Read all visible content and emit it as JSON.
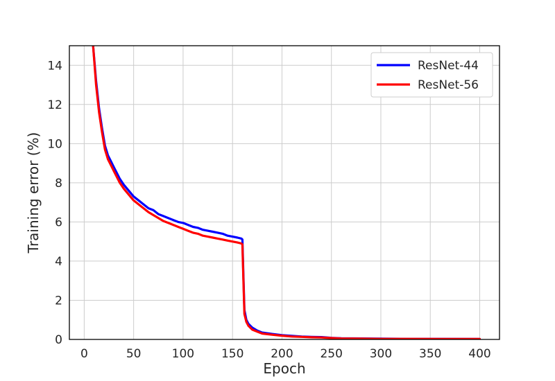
{
  "chart_data": {
    "type": "line",
    "title": "",
    "xlabel": "Epoch",
    "ylabel": "Training error (%)",
    "xlim": [
      -15,
      420
    ],
    "ylim": [
      0,
      15
    ],
    "xticks": [
      0,
      50,
      100,
      150,
      200,
      250,
      300,
      350,
      400
    ],
    "yticks": [
      0,
      2,
      4,
      6,
      8,
      10,
      12,
      14
    ],
    "grid": true,
    "legend_position": "top-right",
    "series": [
      {
        "name": "ResNet-44",
        "color": "#0000ff",
        "x": [
          9,
          12,
          15,
          18,
          21,
          24,
          27,
          30,
          33,
          36,
          40,
          45,
          50,
          55,
          60,
          65,
          70,
          75,
          80,
          85,
          90,
          95,
          100,
          105,
          110,
          115,
          120,
          125,
          130,
          135,
          140,
          145,
          150,
          155,
          159,
          160,
          161,
          162,
          164,
          166,
          170,
          175,
          180,
          190,
          200,
          210,
          220,
          230,
          240,
          250,
          260,
          280,
          300,
          330,
          360,
          400
        ],
        "y": [
          15.0,
          13.2,
          11.8,
          10.8,
          9.9,
          9.4,
          9.1,
          8.8,
          8.5,
          8.2,
          7.9,
          7.6,
          7.3,
          7.1,
          6.9,
          6.7,
          6.6,
          6.4,
          6.3,
          6.2,
          6.1,
          6.0,
          5.95,
          5.85,
          5.75,
          5.7,
          5.6,
          5.55,
          5.5,
          5.45,
          5.4,
          5.3,
          5.25,
          5.2,
          5.15,
          5.1,
          3.2,
          1.5,
          1.0,
          0.8,
          0.6,
          0.45,
          0.35,
          0.28,
          0.22,
          0.18,
          0.15,
          0.13,
          0.12,
          0.08,
          0.06,
          0.05,
          0.04,
          0.03,
          0.03,
          0.02
        ]
      },
      {
        "name": "ResNet-56",
        "color": "#ff0000",
        "x": [
          9,
          12,
          15,
          18,
          21,
          24,
          27,
          30,
          33,
          36,
          40,
          45,
          50,
          55,
          60,
          65,
          70,
          75,
          80,
          85,
          90,
          95,
          100,
          105,
          110,
          115,
          120,
          125,
          130,
          135,
          140,
          145,
          150,
          155,
          159,
          160,
          161,
          162,
          164,
          166,
          170,
          175,
          180,
          190,
          200,
          210,
          220,
          230,
          240,
          250,
          260,
          280,
          300,
          330,
          360,
          400
        ],
        "y": [
          15.0,
          13.0,
          11.6,
          10.6,
          9.7,
          9.2,
          8.9,
          8.6,
          8.3,
          8.0,
          7.7,
          7.4,
          7.1,
          6.9,
          6.7,
          6.5,
          6.35,
          6.2,
          6.05,
          5.95,
          5.85,
          5.75,
          5.65,
          5.55,
          5.45,
          5.4,
          5.3,
          5.25,
          5.2,
          5.15,
          5.1,
          5.05,
          5.0,
          4.95,
          4.9,
          4.85,
          3.0,
          1.3,
          0.9,
          0.7,
          0.5,
          0.4,
          0.3,
          0.24,
          0.19,
          0.15,
          0.13,
          0.11,
          0.1,
          0.07,
          0.05,
          0.04,
          0.03,
          0.03,
          0.02,
          0.02
        ]
      }
    ]
  }
}
